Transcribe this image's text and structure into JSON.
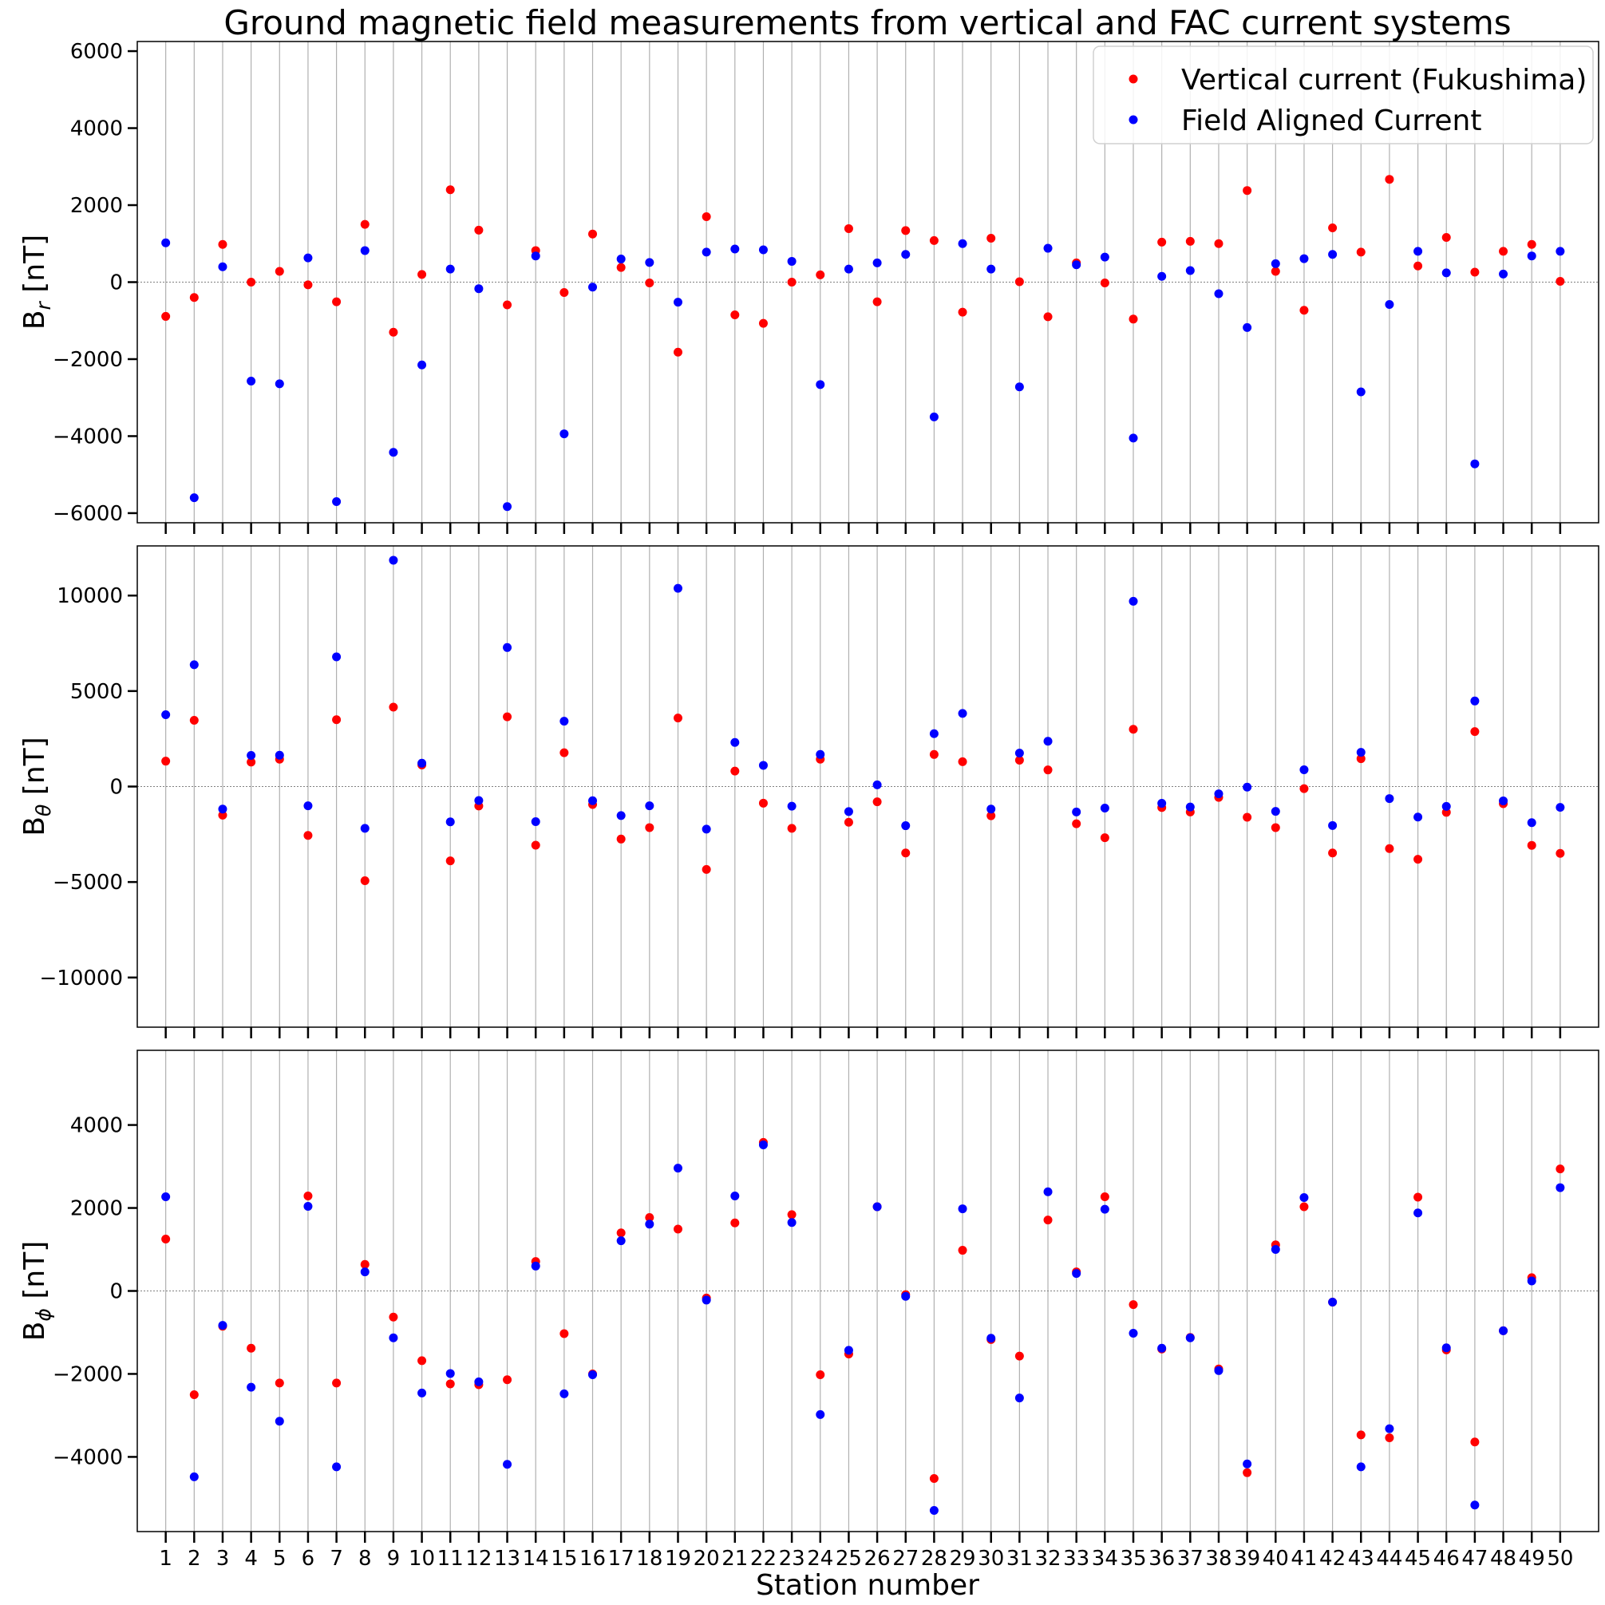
{
  "chart_data": {
    "type": "scatter",
    "title": "Ground magnetic field measurements from vertical and FAC current systems",
    "xlabel": "Station number",
    "x": [
      1,
      2,
      3,
      4,
      5,
      6,
      7,
      8,
      9,
      10,
      11,
      12,
      13,
      14,
      15,
      16,
      17,
      18,
      19,
      20,
      21,
      22,
      23,
      24,
      25,
      26,
      27,
      28,
      29,
      30,
      31,
      32,
      33,
      34,
      35,
      36,
      37,
      38,
      39,
      40,
      41,
      42,
      43,
      44,
      45,
      46,
      47,
      48,
      49,
      50
    ],
    "x_tick_labels": [
      "1",
      "2",
      "3",
      "4",
      "5",
      "6",
      "7",
      "8",
      "9",
      "10",
      "11",
      "12",
      "13",
      "14",
      "15",
      "16",
      "17",
      "18",
      "19",
      "20",
      "21",
      "22",
      "23",
      "24",
      "25",
      "26",
      "27",
      "28",
      "29",
      "30",
      "31",
      "32",
      "33",
      "34",
      "35",
      "36",
      "37",
      "38",
      "39",
      "40",
      "41",
      "42",
      "43",
      "44",
      "45",
      "46",
      "47",
      "48",
      "49",
      "50"
    ],
    "grid": "vertical lines at every station",
    "legend": {
      "placement": "top-right",
      "entries": [
        {
          "label": "Vertical current (Fukushima)",
          "color": "#ff0000"
        },
        {
          "label": "Field Aligned Current",
          "color": "#0000ff"
        }
      ]
    },
    "panels": [
      {
        "ylabel_base": "B",
        "ylabel_sub": "r",
        "ylabel_unit": " [nT]",
        "ylim": [
          -6250,
          6250
        ],
        "yticks": [
          -6000,
          -4000,
          -2000,
          0,
          2000,
          4000,
          6000
        ],
        "ytick_labels": [
          "−6000",
          "−4000",
          "−2000",
          "0",
          "2000",
          "4000",
          "6000"
        ],
        "series": [
          {
            "name": "Vertical current (Fukushima)",
            "color": "#ff0000",
            "values": [
              -890,
              -400,
              980,
              0,
              280,
              -70,
              -510,
              1500,
              -1300,
              200,
              2400,
              1350,
              -590,
              820,
              -270,
              1250,
              380,
              -20,
              -1820,
              1700,
              -850,
              -1070,
              0,
              190,
              1390,
              -510,
              1340,
              1080,
              -780,
              1140,
              10,
              -900,
              500,
              -20,
              -960,
              1040,
              1060,
              1000,
              2380,
              280,
              -730,
              1410,
              780,
              2670,
              420,
              1160,
              260,
              800,
              980,
              20
            ]
          },
          {
            "name": "Field Aligned Current",
            "color": "#0000ff",
            "values": [
              1020,
              -5600,
              400,
              -2570,
              -2640,
              630,
              -5700,
              820,
              -4420,
              -2150,
              340,
              -170,
              -5830,
              680,
              -3940,
              -130,
              600,
              510,
              -520,
              780,
              860,
              840,
              540,
              -2660,
              340,
              500,
              720,
              -3500,
              1000,
              340,
              -2720,
              880,
              450,
              650,
              -4050,
              150,
              300,
              -300,
              -1180,
              480,
              610,
              720,
              -2850,
              -580,
              800,
              240,
              -4720,
              210,
              680,
              800
            ]
          }
        ]
      },
      {
        "ylabel_base": "B",
        "ylabel_sub": "θ",
        "ylabel_unit": " [nT]",
        "ylim": [
          -12600,
          12600
        ],
        "yticks": [
          -10000,
          -5000,
          0,
          5000,
          10000
        ],
        "ytick_labels": [
          "−10000",
          "−5000",
          "0",
          "5000",
          "10000"
        ],
        "series": [
          {
            "name": "Vertical current (Fukushima)",
            "color": "#ff0000",
            "values": [
              1330,
              3470,
              -1500,
              1280,
              1430,
              -2560,
              3500,
              -4930,
              4160,
              1130,
              -3890,
              -1020,
              3650,
              -3070,
              1770,
              -940,
              -2750,
              -2150,
              3590,
              -4340,
              810,
              -870,
              -2190,
              1430,
              -1870,
              -800,
              -3480,
              1680,
              1300,
              -1530,
              1380,
              870,
              -1950,
              -2680,
              3000,
              -1100,
              -1330,
              -570,
              -1610,
              -2150,
              -110,
              -3480,
              1460,
              -3250,
              -3810,
              -1350,
              2880,
              -900,
              -3080,
              -3500
            ]
          },
          {
            "name": "Field Aligned Current",
            "color": "#0000ff",
            "values": [
              3760,
              6380,
              -1180,
              1630,
              1640,
              -1010,
              6790,
              -2190,
              11850,
              1220,
              -1850,
              -730,
              7280,
              -1840,
              3420,
              -740,
              -1520,
              -1010,
              10380,
              -2230,
              2310,
              1110,
              -1030,
              1680,
              -1310,
              90,
              -2050,
              2770,
              3830,
              -1180,
              1750,
              2370,
              -1330,
              -1130,
              9700,
              -880,
              -1070,
              -380,
              -30,
              -1300,
              880,
              -2040,
              1790,
              -630,
              -1600,
              -1040,
              4480,
              -750,
              -1890,
              -1090
            ]
          }
        ]
      },
      {
        "ylabel_base": "B",
        "ylabel_sub": "ϕ",
        "ylabel_unit": " [nT]",
        "ylim": [
          -5800,
          5800
        ],
        "yticks": [
          -4000,
          -2000,
          0,
          2000,
          4000
        ],
        "ytick_labels": [
          "−4000",
          "−2000",
          "0",
          "2000",
          "4000"
        ],
        "series": [
          {
            "name": "Vertical current (Fukushima)",
            "color": "#ff0000",
            "values": [
              1250,
              -2500,
              -850,
              -1380,
              -2220,
              2290,
              -2220,
              640,
              -630,
              -1680,
              -2240,
              -2260,
              -2140,
              710,
              -1030,
              -2000,
              1400,
              1770,
              1490,
              -170,
              1640,
              3580,
              1840,
              -2020,
              -1520,
              2030,
              -90,
              -4520,
              980,
              -1170,
              -1570,
              1710,
              460,
              2270,
              -330,
              -1400,
              -1120,
              -1880,
              -4380,
              1110,
              2030,
              -270,
              -3470,
              -3540,
              2260,
              -1420,
              -3640,
              -960,
              320,
              2940
            ]
          },
          {
            "name": "Field Aligned Current",
            "color": "#0000ff",
            "values": [
              2270,
              -4480,
              -830,
              -2320,
              -3140,
              2040,
              -4240,
              460,
              -1130,
              -2460,
              -1990,
              -2190,
              -4180,
              600,
              -2480,
              -2020,
              1210,
              1610,
              2960,
              -220,
              2290,
              3520,
              1650,
              -2980,
              -1430,
              2030,
              -130,
              -5290,
              1980,
              -1140,
              -2580,
              2390,
              420,
              1970,
              -1020,
              -1380,
              -1130,
              -1920,
              -4170,
              1000,
              2250,
              -270,
              -4240,
              -3320,
              1880,
              -1370,
              -5160,
              -960,
              240,
              2490
            ]
          }
        ]
      }
    ]
  }
}
